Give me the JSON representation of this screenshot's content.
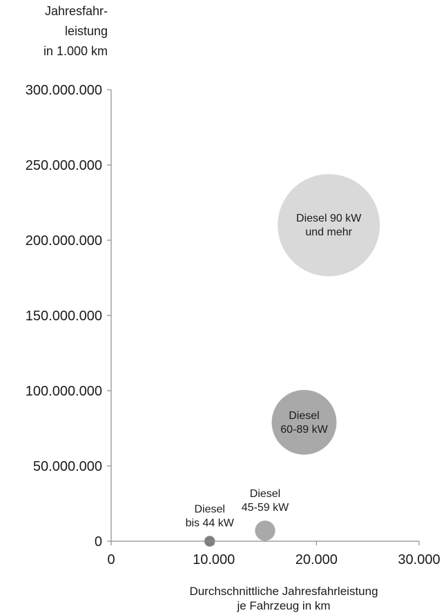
{
  "chart_data": {
    "type": "bubble",
    "ylabel": [
      "Jahresfahr-",
      "leistung",
      "in 1.000 km"
    ],
    "xlabel": [
      "Durchschnittliche Jahresfahrleistung",
      "je Fahrzeug in km"
    ],
    "xlim": [
      0,
      30000
    ],
    "ylim": [
      0,
      300000000
    ],
    "x_ticks": [
      0,
      10000,
      20000,
      30000
    ],
    "x_tick_labels": [
      "0",
      "10.000",
      "20.000",
      "30.000"
    ],
    "y_ticks": [
      0,
      50000000,
      100000000,
      150000000,
      200000000,
      250000000,
      300000000
    ],
    "y_tick_labels": [
      "0",
      "50.000.000",
      "100.000.000",
      "150.000.000",
      "200.000.000",
      "250.000.000",
      "300.000.000"
    ],
    "grid": false,
    "legend": "none",
    "points": [
      {
        "label": [
          "Diesel",
          "bis 44 kW"
        ],
        "x": 9600,
        "y": 0,
        "size": 1,
        "color": "#7f7f7f",
        "label_pos": "above"
      },
      {
        "label": [
          "Diesel",
          "45-59 kW"
        ],
        "x": 15000,
        "y": 7000000,
        "size": 3.6,
        "color": "#a9a9a9",
        "label_pos": "above"
      },
      {
        "label": [
          "Diesel",
          "60-89 kW"
        ],
        "x": 18800,
        "y": 79000000,
        "size": 37,
        "color": "#a9a9a9",
        "label_pos": "inside"
      },
      {
        "label": [
          "Diesel 90 kW",
          "und mehr"
        ],
        "x": 21200,
        "y": 210000000,
        "size": 92,
        "color": "#d9d9d9",
        "label_pos": "inside"
      }
    ]
  }
}
